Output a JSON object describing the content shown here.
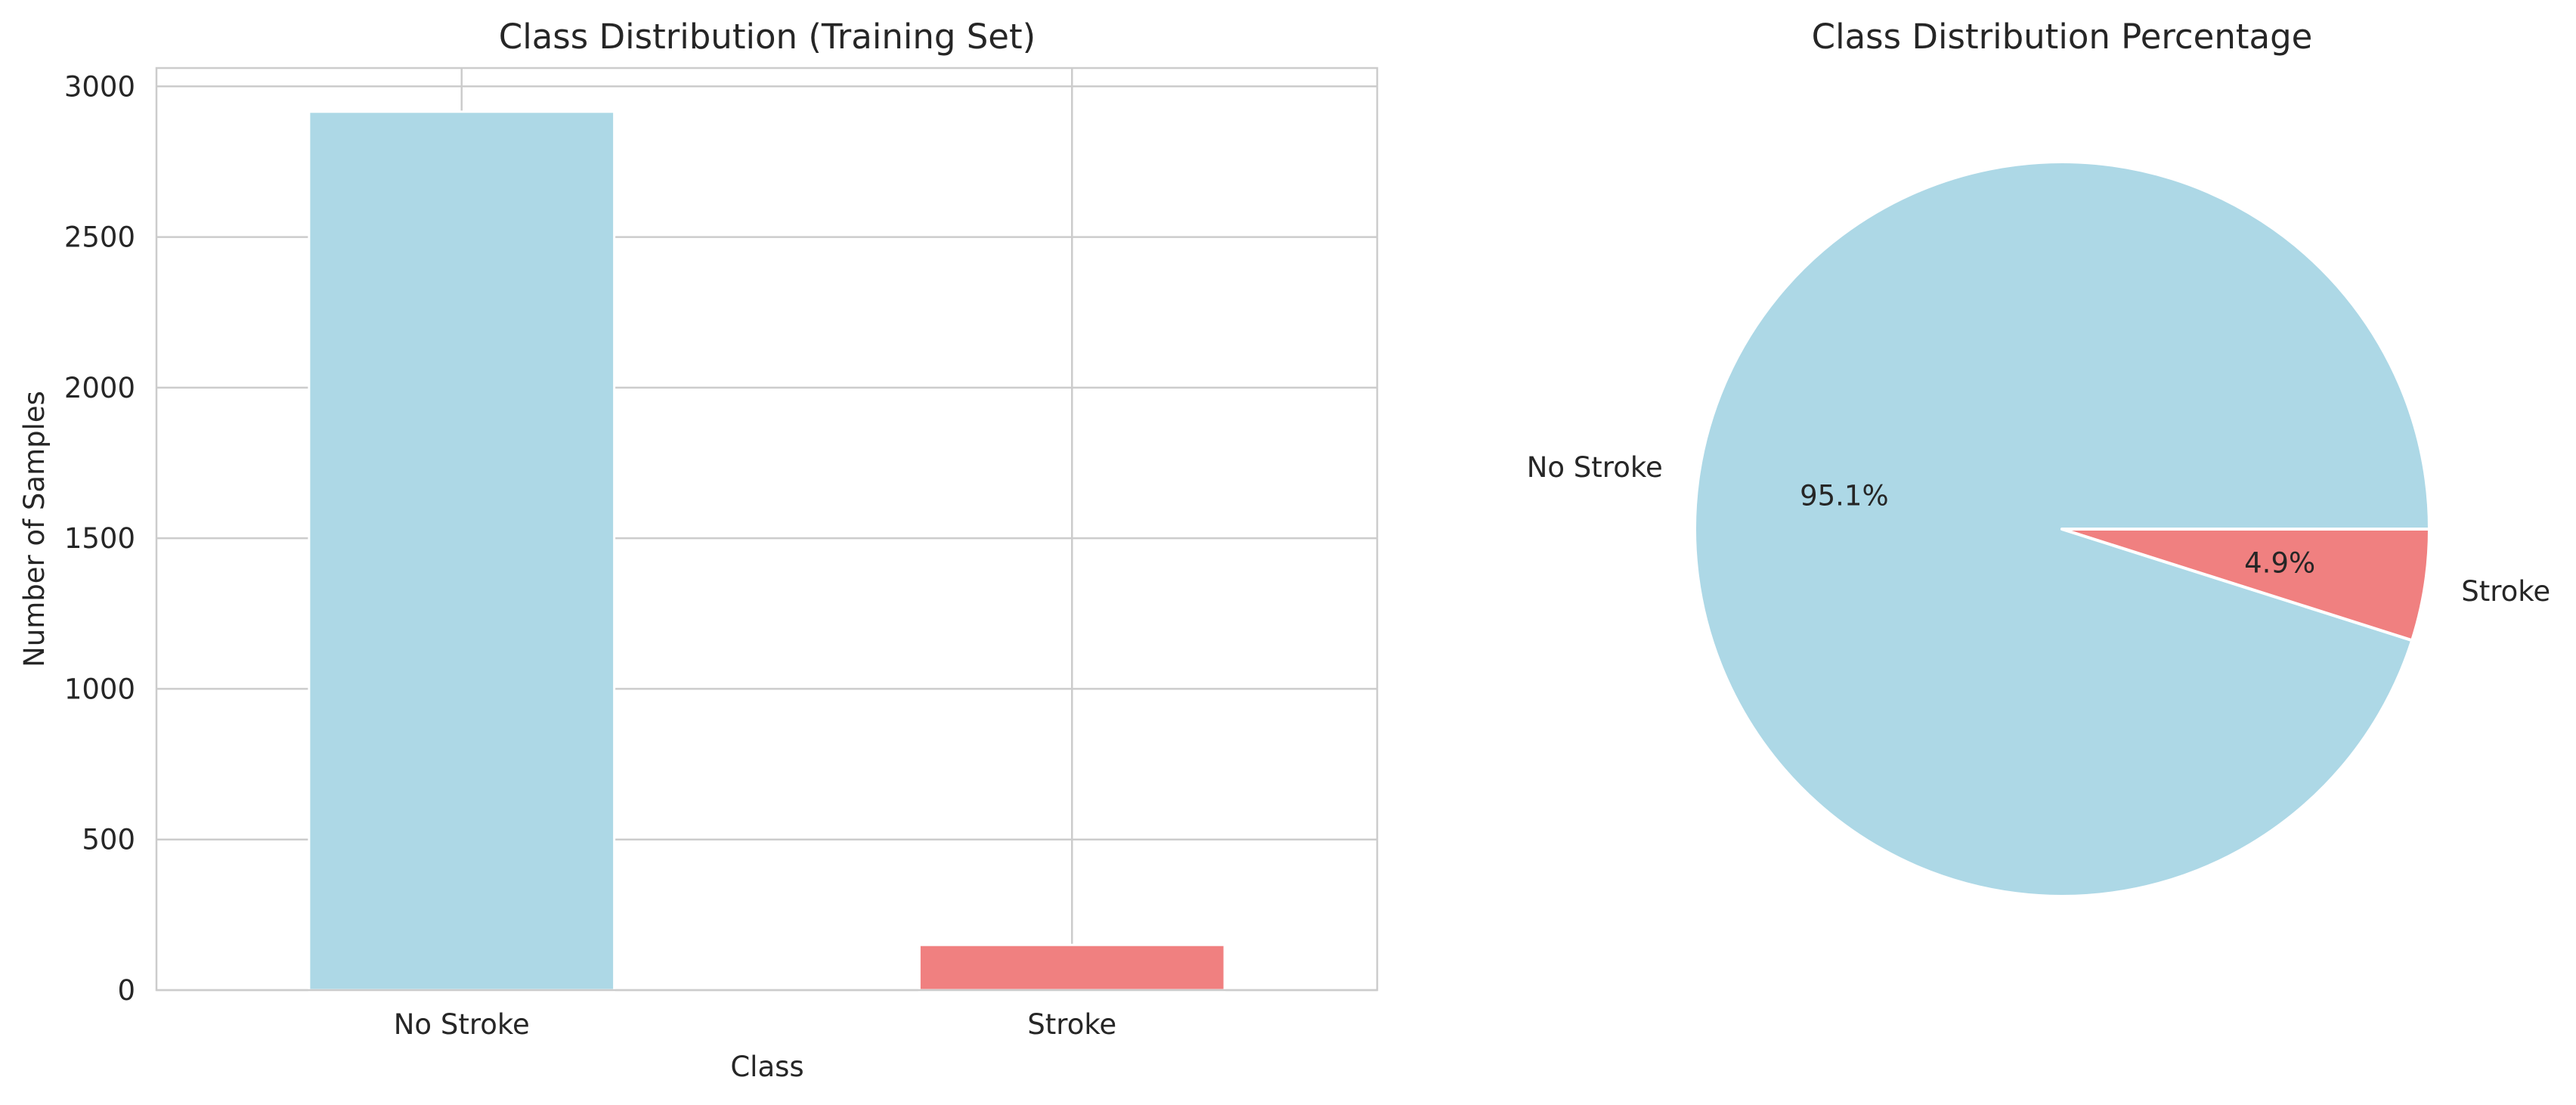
{
  "chart_data": [
    {
      "type": "bar",
      "title": "Class Distribution (Training Set)",
      "xlabel": "Class",
      "ylabel": "Number of Samples",
      "categories": [
        "No Stroke",
        "Stroke"
      ],
      "values": [
        2916,
        150
      ],
      "colors": [
        "#add8e6",
        "#f08080"
      ],
      "ylim": [
        0,
        3061
      ],
      "yticks": [
        0,
        500,
        1000,
        1500,
        2000,
        2500,
        3000
      ],
      "grid": true
    },
    {
      "type": "pie",
      "title": "Class Distribution Percentage",
      "labels": [
        "No Stroke",
        "Stroke"
      ],
      "values": [
        95.1,
        4.9
      ],
      "pct_labels": [
        "95.1%",
        "4.9%"
      ],
      "colors": [
        "#add8e6",
        "#f08080"
      ],
      "start_angle_deg": 0
    }
  ]
}
